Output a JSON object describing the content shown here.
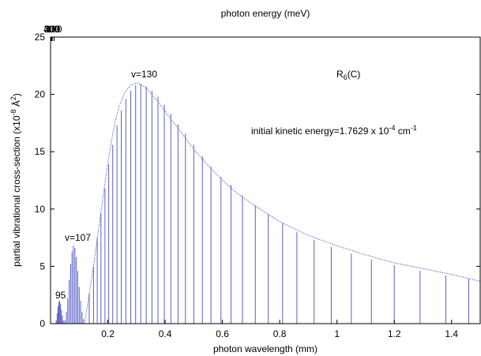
{
  "chart_data": {
    "type": "line",
    "xlabel": "photon wavelength (mm)",
    "ylabel": "partial vibrational cross-section (x10",
    "ylabel_exp": "-8",
    "ylabel_unit": " Å",
    "ylabel_unit_exp": "2",
    "ylabel_close": ")",
    "top_xlabel": "photon energy (meV)",
    "xlim": [
      0.0,
      1.5
    ],
    "ylim": [
      0,
      25
    ],
    "x_ticks": [
      0.2,
      0.4,
      0.6,
      0.8,
      1.0,
      1.2,
      1.4
    ],
    "x_tick_labels": [
      "0.2",
      "0.4",
      "0.6",
      "0.8",
      "1",
      "1.2",
      "1.4"
    ],
    "y_ticks": [
      0,
      5,
      10,
      15,
      20,
      25
    ],
    "y_tick_labels": [
      "0",
      "5",
      "10",
      "15",
      "20",
      "25"
    ],
    "top_ticks": [
      400,
      300,
      200,
      100
    ],
    "top_tick_labels": [
      "400",
      "300",
      "200",
      "100"
    ],
    "annotations": {
      "v130": "v=130",
      "v107": "v=107",
      "v95": "95",
      "label_r": "R",
      "label_r_sub": "6",
      "label_r_rest": "(C)",
      "ke_prefix": "initial kinetic energy=1.7629 x 10",
      "ke_exp": "-4",
      "ke_suffix": " cm",
      "ke_unit_exp": "-1"
    },
    "series": [
      {
        "style": "dotted envelope",
        "x": [
          0.12,
          0.15,
          0.18,
          0.2,
          0.22,
          0.24,
          0.26,
          0.28,
          0.3,
          0.32,
          0.34,
          0.36,
          0.38,
          0.4,
          0.45,
          0.5,
          0.55,
          0.6,
          0.65,
          0.7,
          0.8,
          0.9,
          1.0,
          1.1,
          1.2,
          1.3,
          1.4,
          1.5
        ],
        "y": [
          0.2,
          5.0,
          10.5,
          14.0,
          17.0,
          19.0,
          20.2,
          20.8,
          21.0,
          20.8,
          20.4,
          19.8,
          19.2,
          18.5,
          16.9,
          15.2,
          13.8,
          12.5,
          11.4,
          10.5,
          8.9,
          7.7,
          6.8,
          6.0,
          5.3,
          4.8,
          4.3,
          3.7
        ]
      },
      {
        "style": "sticks",
        "x": [
          0.135,
          0.15,
          0.163,
          0.176,
          0.19,
          0.203,
          0.217,
          0.232,
          0.247,
          0.263,
          0.28,
          0.297,
          0.315,
          0.334,
          0.354,
          0.375,
          0.397,
          0.42,
          0.445,
          0.471,
          0.5,
          0.53,
          0.56,
          0.595,
          0.63,
          0.67,
          0.715,
          0.76,
          0.81,
          0.86,
          0.92,
          0.98,
          1.05,
          1.12,
          1.2,
          1.29,
          1.38,
          1.46
        ],
        "y": [
          2.6,
          5.0,
          7.5,
          9.6,
          11.8,
          13.9,
          15.6,
          17.3,
          18.6,
          19.6,
          20.3,
          20.8,
          20.9,
          20.7,
          20.3,
          19.8,
          19.1,
          18.3,
          17.4,
          16.6,
          15.6,
          14.6,
          13.7,
          12.8,
          12.1,
          11.2,
          10.3,
          9.6,
          8.8,
          8.0,
          7.3,
          6.7,
          6.1,
          5.6,
          5.1,
          4.6,
          4.2,
          3.9
        ]
      },
      {
        "style": "dense peak v=107",
        "x": [
          0.05,
          0.055,
          0.06,
          0.065,
          0.07,
          0.075,
          0.08,
          0.085,
          0.09,
          0.095,
          0.1,
          0.105,
          0.11,
          0.115,
          0.12
        ],
        "y": [
          0.3,
          1.0,
          2.2,
          3.8,
          5.2,
          6.3,
          6.8,
          6.6,
          5.8,
          4.6,
          3.2,
          2.0,
          1.0,
          0.4,
          0.1
        ]
      },
      {
        "style": "dense peak 95",
        "x": [
          0.02,
          0.023,
          0.026,
          0.029,
          0.032,
          0.035,
          0.038,
          0.041,
          0.044,
          0.047
        ],
        "y": [
          0.3,
          0.9,
          1.5,
          1.9,
          2.0,
          1.7,
          1.2,
          0.7,
          0.3,
          0.1
        ]
      }
    ]
  },
  "colors": {
    "series": "#5a5fc4",
    "axis": "#000000"
  }
}
